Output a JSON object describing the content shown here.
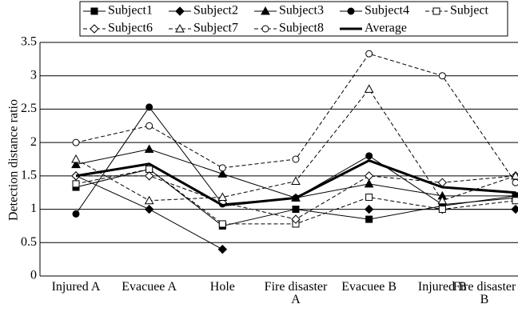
{
  "chart_data": {
    "type": "line",
    "y_label": "Detection distance ratio",
    "categories": [
      "Injured A",
      "Evacuee A",
      "Hole",
      "Fire disaster A",
      "Evacuee B",
      "Injured B",
      "Fire disaster B"
    ],
    "ylim": [
      0,
      3.5
    ],
    "yticks": [
      0,
      0.5,
      1,
      1.5,
      2,
      2.5,
      3,
      3.5
    ],
    "grid": true,
    "series": [
      {
        "name": "Subject1",
        "color": "#000000",
        "marker": "square-filled",
        "dash": false,
        "values": [
          1.33,
          1.6,
          0.75,
          1.0,
          0.85,
          1.05,
          1.2
        ]
      },
      {
        "name": "Subject2",
        "color": "#000000",
        "marker": "diamond-filled",
        "dash": false,
        "values": [
          1.5,
          1.0,
          0.4,
          null,
          1.0,
          1.0,
          1.0
        ]
      },
      {
        "name": "Subject3",
        "color": "#000000",
        "marker": "triangle-filled",
        "dash": false,
        "values": [
          1.67,
          1.9,
          1.53,
          1.17,
          1.38,
          1.2,
          1.2
        ]
      },
      {
        "name": "Subject4",
        "color": "#000000",
        "marker": "circle-filled",
        "dash": false,
        "values": [
          0.93,
          2.53,
          1.08,
          1.17,
          1.8,
          1.07,
          1.17
        ]
      },
      {
        "name": "Subject",
        "color": "#000000",
        "marker": "square-open",
        "dash": true,
        "values": [
          1.38,
          1.6,
          0.78,
          0.78,
          1.18,
          1.0,
          1.13
        ]
      },
      {
        "name": "Subject6",
        "color": "#000000",
        "marker": "diamond-open",
        "dash": true,
        "values": [
          1.5,
          1.5,
          1.1,
          0.85,
          1.5,
          1.4,
          1.5
        ]
      },
      {
        "name": "Subject7",
        "color": "#000000",
        "marker": "triangle-open",
        "dash": true,
        "values": [
          1.75,
          1.13,
          1.18,
          1.42,
          2.8,
          1.13,
          1.5
        ]
      },
      {
        "name": "Subject8",
        "color": "#000000",
        "marker": "circle-open",
        "dash": true,
        "values": [
          2.0,
          2.25,
          1.62,
          1.75,
          3.33,
          3.0,
          1.4
        ]
      },
      {
        "name": "Average",
        "color": "#000000",
        "marker": "none",
        "dash": false,
        "width": 3,
        "values": [
          1.5,
          1.68,
          1.06,
          1.17,
          1.73,
          1.33,
          1.25
        ]
      }
    ]
  }
}
